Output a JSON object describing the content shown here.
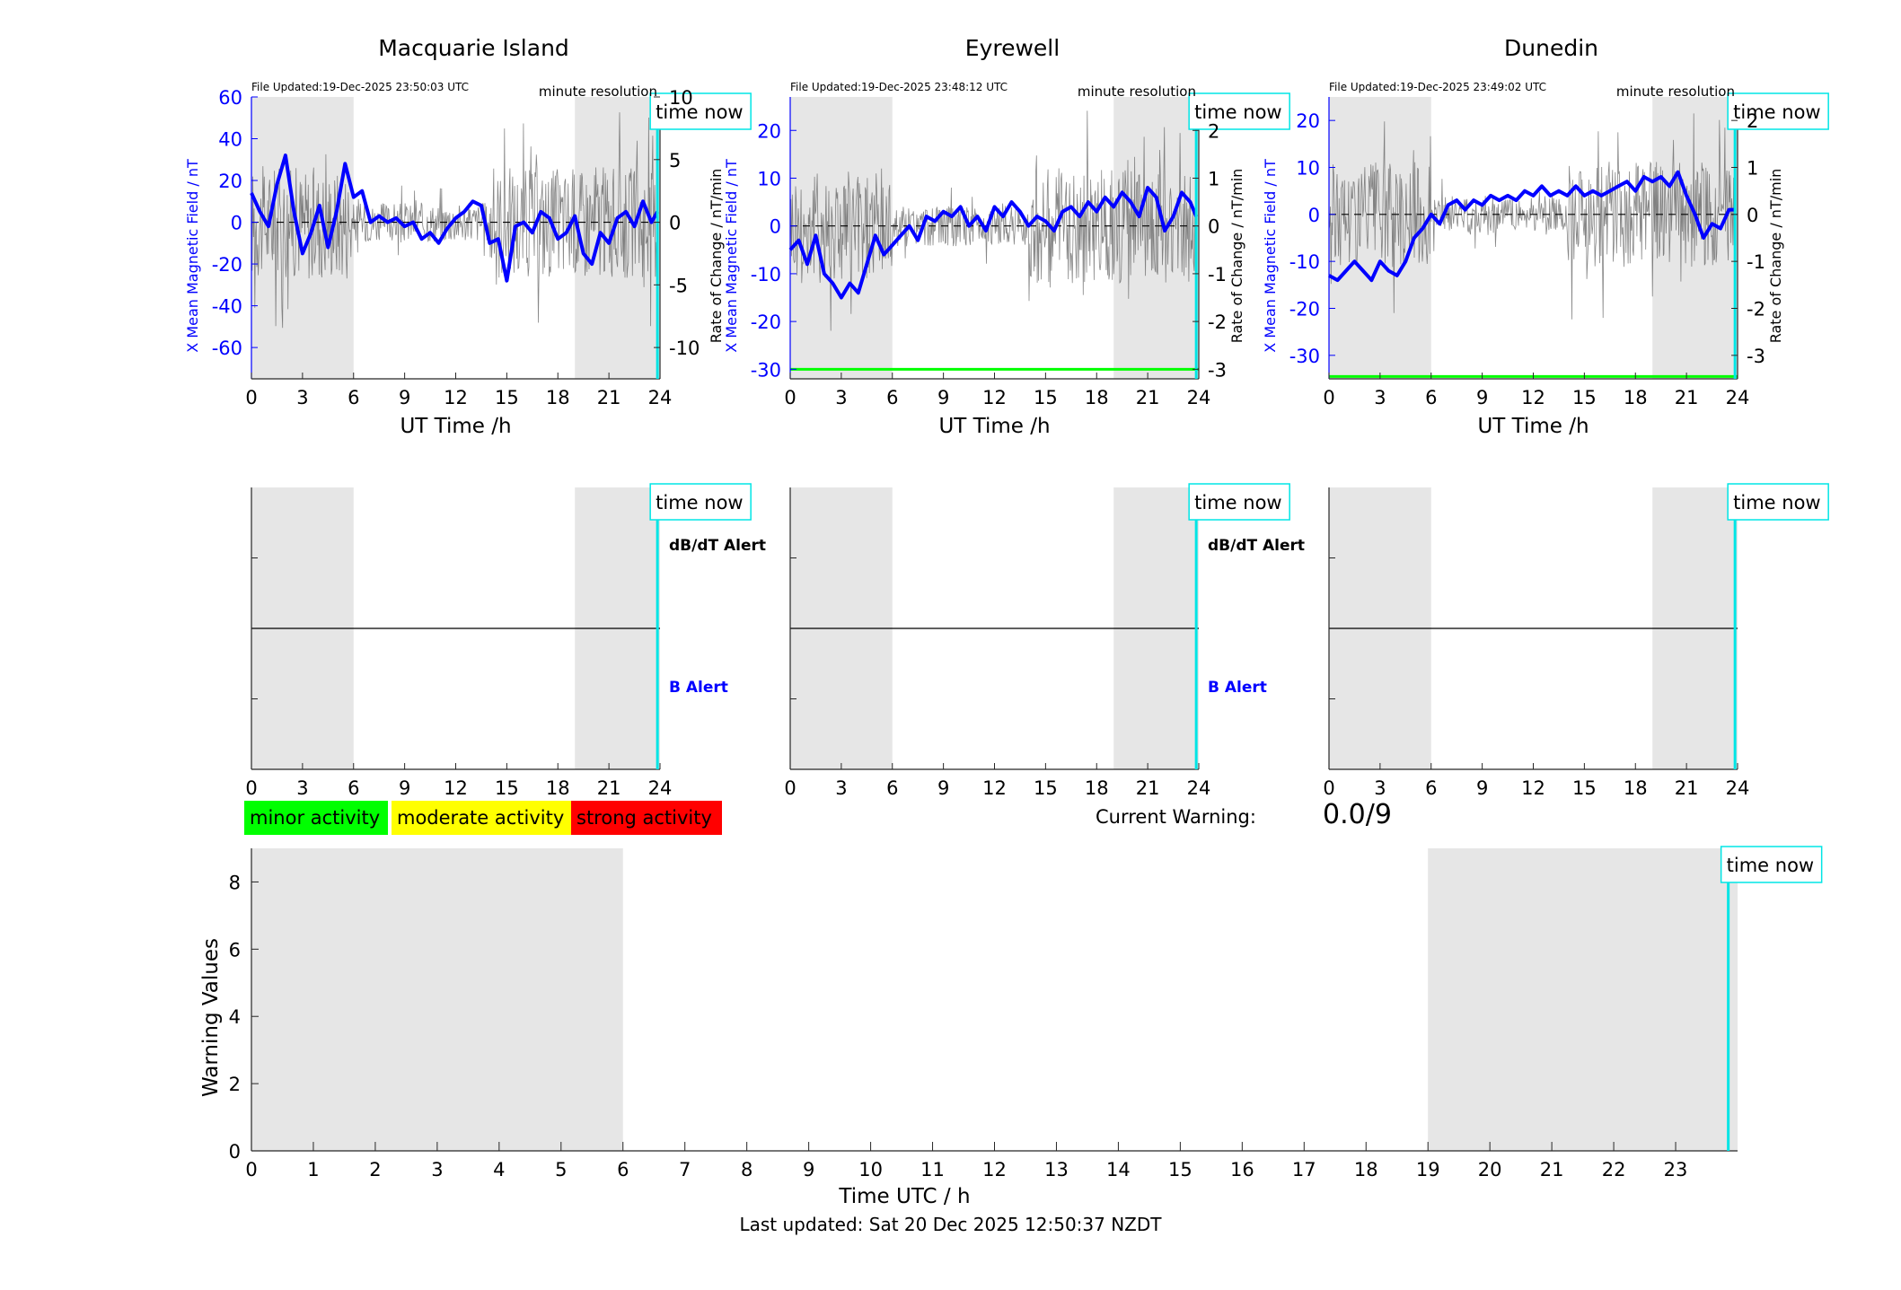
{
  "footer": {
    "last_updated": "Last updated: Sat 20 Dec 2025 12:50:37 NZDT"
  },
  "legend": {
    "items": [
      {
        "label": "minor activity",
        "color": "#00ff00"
      },
      {
        "label": "moderate activity",
        "color": "#ffff00"
      },
      {
        "label": "strong activity",
        "color": "#ff0000"
      }
    ]
  },
  "current_warning": {
    "label": "Current Warning:",
    "value": "0.0/9"
  },
  "colors": {
    "mean_field": "#0000ff",
    "rate": "#000000",
    "time_now": "#00e5e5",
    "night_shade": "#e6e6e6",
    "threshold": "#00ff00"
  },
  "chart_data": [
    {
      "type": "line",
      "title": "Macquarie Island",
      "file_updated": "File Updated:19-Dec-2025 23:50:03 UTC",
      "resolution": "minute resolution",
      "time_now_label": "time now",
      "xlabel": "UT Time /h",
      "ylabel": "X Mean Magnetic Field / nT",
      "ylabel_right": "Rate of Change / nT/min",
      "xlim": [
        0,
        24
      ],
      "ylim": [
        -75,
        60
      ],
      "ylim_right": [
        -12.5,
        10
      ],
      "xticks": [
        0,
        3,
        6,
        9,
        12,
        15,
        18,
        21,
        24
      ],
      "yticks": [
        -60,
        -40,
        -20,
        0,
        20,
        40,
        60
      ],
      "yticks_right": [
        -10,
        -5,
        0,
        5,
        10
      ],
      "night_bands": [
        [
          0,
          6
        ],
        [
          19,
          24
        ]
      ],
      "time_now": 23.85,
      "series": [
        {
          "x": [
            0,
            0.5,
            1,
            1.5,
            2,
            2.5,
            3,
            3.5,
            4,
            4.5,
            5,
            5.5,
            6,
            6.5,
            7,
            7.5,
            8,
            8.5,
            9,
            9.5,
            10,
            10.5,
            11,
            11.5,
            12,
            12.5,
            13,
            13.5,
            14,
            14.5,
            15,
            15.5,
            16,
            16.5,
            17,
            17.5,
            18,
            18.5,
            19,
            19.5,
            20,
            20.5,
            21,
            21.5,
            22,
            22.5,
            23,
            23.5,
            23.85
          ],
          "y": [
            14,
            5,
            -2,
            18,
            32,
            5,
            -15,
            -5,
            8,
            -12,
            5,
            28,
            12,
            15,
            0,
            3,
            0,
            2,
            -2,
            0,
            -8,
            -5,
            -10,
            -3,
            2,
            5,
            10,
            8,
            -10,
            -8,
            -28,
            -2,
            0,
            -5,
            5,
            2,
            -8,
            -5,
            3,
            -15,
            -20,
            -5,
            -10,
            2,
            5,
            -2,
            10,
            0,
            5
          ]
        }
      ]
    },
    {
      "type": "line",
      "title": "Eyrewell",
      "file_updated": "File Updated:19-Dec-2025 23:48:12 UTC",
      "resolution": "minute resolution",
      "time_now_label": "time now",
      "xlabel": "UT Time /h",
      "ylabel": "X Mean Magnetic Field / nT",
      "ylabel_right": "Rate of Change / nT/min",
      "xlim": [
        0,
        24
      ],
      "ylim": [
        -32,
        27
      ],
      "ylim_right": [
        -3.2,
        2.7
      ],
      "xticks": [
        0,
        3,
        6,
        9,
        12,
        15,
        18,
        21,
        24
      ],
      "yticks": [
        -30,
        -20,
        -10,
        0,
        10,
        20
      ],
      "yticks_right": [
        -3,
        -2,
        -1,
        0,
        1,
        2
      ],
      "night_bands": [
        [
          0,
          6
        ],
        [
          19,
          24
        ]
      ],
      "time_now": 23.85,
      "threshold": -30,
      "series": [
        {
          "x": [
            0,
            0.5,
            1,
            1.5,
            2,
            2.5,
            3,
            3.5,
            4,
            4.5,
            5,
            5.5,
            6,
            6.5,
            7,
            7.5,
            8,
            8.5,
            9,
            9.5,
            10,
            10.5,
            11,
            11.5,
            12,
            12.5,
            13,
            13.5,
            14,
            14.5,
            15,
            15.5,
            16,
            16.5,
            17,
            17.5,
            18,
            18.5,
            19,
            19.5,
            20,
            20.5,
            21,
            21.5,
            22,
            22.5,
            23,
            23.5,
            23.85
          ],
          "y": [
            -5,
            -3,
            -8,
            -2,
            -10,
            -12,
            -15,
            -12,
            -14,
            -8,
            -2,
            -6,
            -4,
            -2,
            0,
            -3,
            2,
            1,
            3,
            2,
            4,
            0,
            2,
            -1,
            4,
            2,
            5,
            3,
            0,
            2,
            1,
            -1,
            3,
            4,
            2,
            5,
            3,
            6,
            4,
            7,
            5,
            2,
            8,
            6,
            -1,
            2,
            7,
            5,
            2
          ]
        }
      ]
    },
    {
      "type": "line",
      "title": "Dunedin",
      "file_updated": "File Updated:19-Dec-2025 23:49:02 UTC",
      "resolution": "minute resolution",
      "time_now_label": "time now",
      "xlabel": "UT Time /h",
      "ylabel": "X Mean Magnetic Field / nT",
      "ylabel_right": "Rate of Change / nT/min",
      "xlim": [
        0,
        24
      ],
      "ylim": [
        -35,
        25
      ],
      "ylim_right": [
        -3.5,
        2.5
      ],
      "xticks": [
        0,
        3,
        6,
        9,
        12,
        15,
        18,
        21,
        24
      ],
      "yticks": [
        -30,
        -20,
        -10,
        0,
        10,
        20
      ],
      "yticks_right": [
        -3,
        -2,
        -1,
        0,
        1,
        2
      ],
      "night_bands": [
        [
          0,
          6
        ],
        [
          19,
          24
        ]
      ],
      "time_now": 23.85,
      "threshold": -34.5,
      "series": [
        {
          "x": [
            0,
            0.5,
            1,
            1.5,
            2,
            2.5,
            3,
            3.5,
            4,
            4.5,
            5,
            5.5,
            6,
            6.5,
            7,
            7.5,
            8,
            8.5,
            9,
            9.5,
            10,
            10.5,
            11,
            11.5,
            12,
            12.5,
            13,
            13.5,
            14,
            14.5,
            15,
            15.5,
            16,
            16.5,
            17,
            17.5,
            18,
            18.5,
            19,
            19.5,
            20,
            20.5,
            21,
            21.5,
            22,
            22.5,
            23,
            23.5,
            23.85
          ],
          "y": [
            -13,
            -14,
            -12,
            -10,
            -12,
            -14,
            -10,
            -12,
            -13,
            -10,
            -5,
            -3,
            0,
            -2,
            2,
            3,
            1,
            3,
            2,
            4,
            3,
            4,
            3,
            5,
            4,
            6,
            4,
            5,
            4,
            6,
            4,
            5,
            4,
            5,
            6,
            7,
            5,
            8,
            7,
            8,
            6,
            9,
            4,
            0,
            -5,
            -2,
            -3,
            1,
            1
          ]
        }
      ]
    },
    {
      "type": "line",
      "title": "",
      "time_now_label": "time now",
      "labels": [
        "dB/dT Alert",
        "B Alert"
      ],
      "xlim": [
        0,
        24
      ],
      "ylim": [
        -1,
        1
      ],
      "xticks": [
        0,
        3,
        6,
        9,
        12,
        15,
        18,
        21,
        24
      ],
      "night_bands": [
        [
          0,
          6
        ],
        [
          19,
          24
        ]
      ],
      "time_now": 23.85
    },
    {
      "type": "line",
      "title": "",
      "time_now_label": "time now",
      "labels": [
        "dB/dT Alert",
        "B Alert"
      ],
      "xlim": [
        0,
        24
      ],
      "ylim": [
        -1,
        1
      ],
      "xticks": [
        0,
        3,
        6,
        9,
        12,
        15,
        18,
        21,
        24
      ],
      "night_bands": [
        [
          0,
          6
        ],
        [
          19,
          24
        ]
      ],
      "time_now": 23.85
    },
    {
      "type": "line",
      "title": "",
      "time_now_label": "time now",
      "labels": [],
      "xlim": [
        0,
        24
      ],
      "ylim": [
        -1,
        1
      ],
      "xticks": [
        0,
        3,
        6,
        9,
        12,
        15,
        18,
        21,
        24
      ],
      "night_bands": [
        [
          0,
          6
        ],
        [
          19,
          24
        ]
      ],
      "time_now": 23.85
    },
    {
      "type": "bar",
      "title": "",
      "time_now_label": "time now",
      "xlabel": "Time UTC / h",
      "ylabel": "Warning Values",
      "xlim": [
        0,
        24
      ],
      "ylim": [
        0,
        9
      ],
      "xticks": [
        0,
        1,
        2,
        3,
        4,
        5,
        6,
        7,
        8,
        9,
        10,
        11,
        12,
        13,
        14,
        15,
        16,
        17,
        18,
        19,
        20,
        21,
        22,
        23
      ],
      "yticks": [
        0,
        2,
        4,
        6,
        8
      ],
      "night_bands": [
        [
          0,
          6
        ],
        [
          19,
          24
        ]
      ],
      "time_now": 23.85,
      "values": []
    }
  ]
}
